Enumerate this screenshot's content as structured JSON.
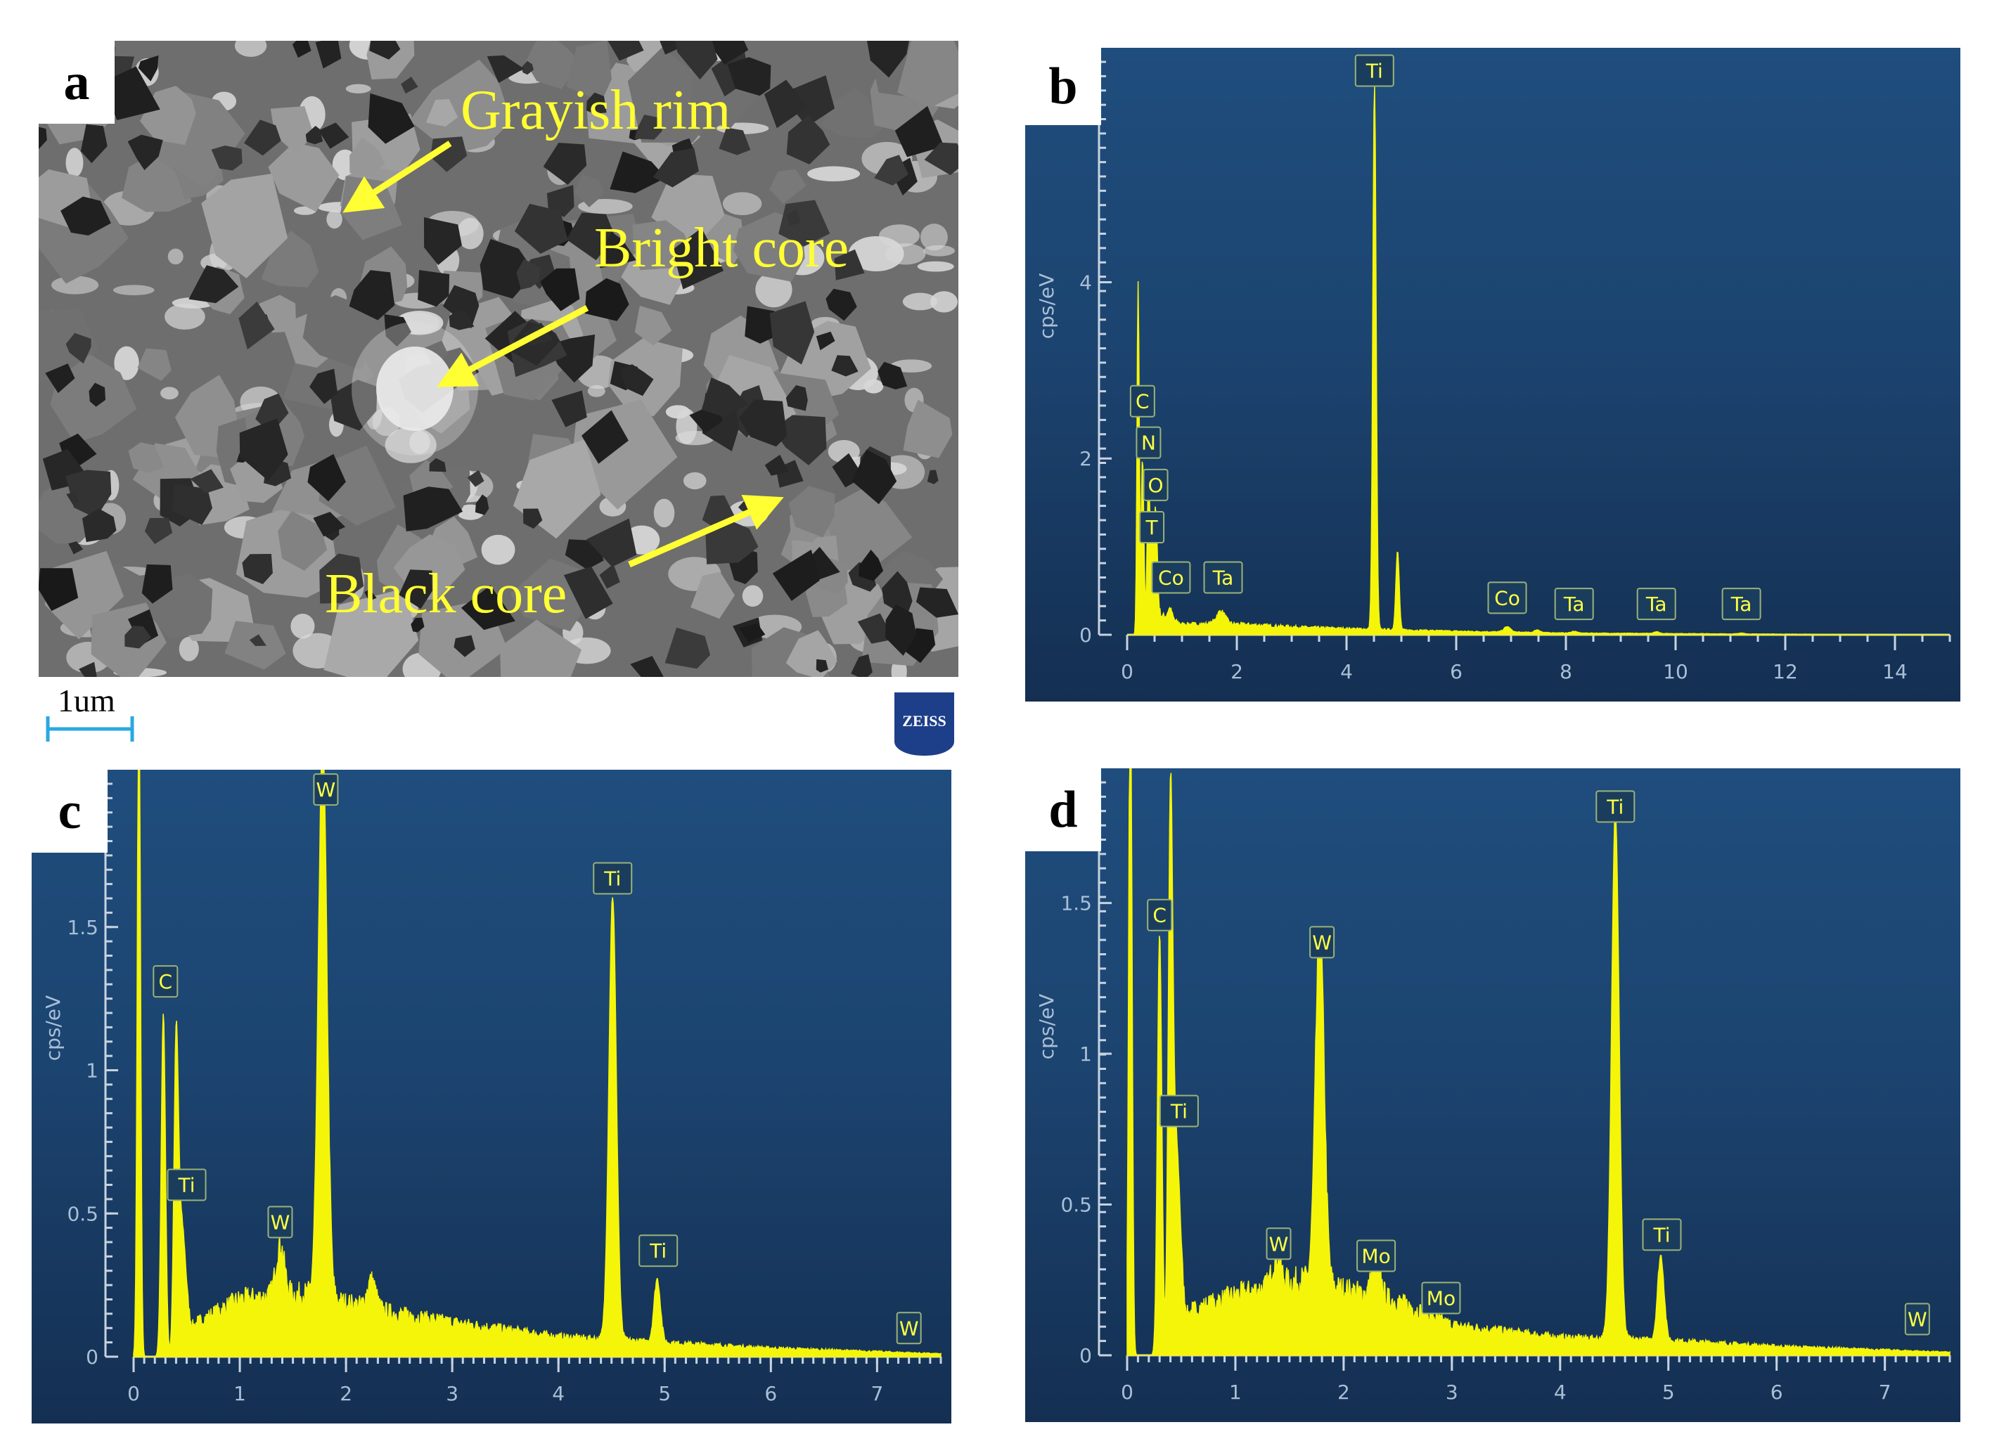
{
  "panel_a": {
    "letter": "a",
    "labels": {
      "rim": "Grayish rim",
      "bright": "Bright core",
      "black": "Black core"
    },
    "scale_bar": "1um",
    "logo_text": "ZEISS"
  },
  "panels": [
    {
      "key": "b",
      "letter": "b",
      "ylabel": "cps/eV",
      "xlim": [
        0,
        15
      ],
      "ylim": [
        0,
        6.5
      ],
      "xticks": [
        0,
        2,
        4,
        6,
        8,
        10,
        12,
        14
      ],
      "yticks": [
        0,
        2,
        4
      ],
      "minor_x": 0.5,
      "peaks": [
        [
          0.2,
          4.0,
          0.02
        ],
        [
          0.28,
          2.0,
          0.025
        ],
        [
          0.39,
          1.7,
          0.025
        ],
        [
          0.45,
          0.85,
          0.02
        ],
        [
          0.52,
          1.2,
          0.03
        ],
        [
          0.78,
          0.12,
          0.04
        ],
        [
          1.71,
          0.15,
          0.08
        ],
        [
          4.51,
          6.2,
          0.03
        ],
        [
          4.93,
          0.9,
          0.03
        ],
        [
          6.93,
          0.06,
          0.06
        ],
        [
          7.48,
          0.03,
          0.05
        ],
        [
          8.15,
          0.02,
          0.05
        ],
        [
          9.65,
          0.02,
          0.05
        ],
        [
          11.2,
          0.01,
          0.05
        ]
      ],
      "background": [
        [
          0.3,
          0.0
        ],
        [
          0.5,
          0.25
        ],
        [
          1.0,
          0.12
        ],
        [
          2.0,
          0.12
        ],
        [
          3.0,
          0.09
        ],
        [
          4.0,
          0.07
        ],
        [
          6.0,
          0.04
        ],
        [
          8.0,
          0.02
        ],
        [
          11.0,
          0.01
        ],
        [
          15.0,
          0.0
        ]
      ],
      "peak_labels": [
        {
          "text": "Ti",
          "x": 4.51,
          "y": 6.4
        },
        {
          "text": "C",
          "x": 0.28,
          "y": 2.65
        },
        {
          "text": "N",
          "x": 0.39,
          "y": 2.18
        },
        {
          "text": "O",
          "x": 0.52,
          "y": 1.7
        },
        {
          "text": "T",
          "x": 0.45,
          "y": 1.22
        },
        {
          "text": "Co",
          "x": 0.8,
          "y": 0.65
        },
        {
          "text": "Ta",
          "x": 1.75,
          "y": 0.65
        },
        {
          "text": "Co",
          "x": 6.93,
          "y": 0.42
        },
        {
          "text": "Ta",
          "x": 8.15,
          "y": 0.35
        },
        {
          "text": "Ta",
          "x": 9.65,
          "y": 0.35
        },
        {
          "text": "Ta",
          "x": 11.2,
          "y": 0.35
        }
      ]
    },
    {
      "key": "c",
      "letter": "c",
      "ylabel": "cps/eV",
      "xlim": [
        0,
        7.6
      ],
      "ylim": [
        0,
        2.0
      ],
      "xticks": [
        0,
        1,
        2,
        3,
        4,
        5,
        6,
        7
      ],
      "yticks": [
        0,
        0.5,
        1,
        1.5
      ],
      "ytick_labels": [
        "0",
        "0.5",
        "1",
        "1.5"
      ],
      "minor_x": 0.1,
      "peaks": [
        [
          0.05,
          2.4,
          0.015
        ],
        [
          0.28,
          1.2,
          0.02
        ],
        [
          0.4,
          0.95,
          0.02
        ],
        [
          0.45,
          0.42,
          0.04
        ],
        [
          1.38,
          0.18,
          0.04
        ],
        [
          1.78,
          1.95,
          0.04
        ],
        [
          2.24,
          0.1,
          0.04
        ],
        [
          4.51,
          1.55,
          0.035
        ],
        [
          4.93,
          0.22,
          0.03
        ]
      ],
      "background": [
        [
          0.35,
          0.0
        ],
        [
          0.6,
          0.12
        ],
        [
          1.0,
          0.2
        ],
        [
          1.6,
          0.22
        ],
        [
          2.5,
          0.15
        ],
        [
          3.0,
          0.12
        ],
        [
          4.0,
          0.07
        ],
        [
          5.0,
          0.05
        ],
        [
          6.0,
          0.03
        ],
        [
          7.6,
          0.01
        ]
      ],
      "peak_labels": [
        {
          "text": "W",
          "x": 1.81,
          "y": 1.98
        },
        {
          "text": "C",
          "x": 0.3,
          "y": 1.31
        },
        {
          "text": "Ti",
          "x": 0.5,
          "y": 0.6
        },
        {
          "text": "W",
          "x": 1.38,
          "y": 0.47
        },
        {
          "text": "Ti",
          "x": 4.51,
          "y": 1.67
        },
        {
          "text": "Ti",
          "x": 4.94,
          "y": 0.37
        },
        {
          "text": "W",
          "x": 7.3,
          "y": 0.1
        }
      ]
    },
    {
      "key": "d",
      "letter": "d",
      "ylabel": "cps/eV",
      "xlim": [
        0,
        7.6
      ],
      "ylim": [
        0,
        1.9
      ],
      "xticks": [
        0,
        1,
        2,
        3,
        4,
        5,
        6,
        7
      ],
      "yticks": [
        0,
        0.5,
        1,
        1.5
      ],
      "ytick_labels": [
        "0",
        "0.5",
        "1",
        "1.5"
      ],
      "minor_x": 0.1,
      "peaks": [
        [
          0.03,
          2.4,
          0.015
        ],
        [
          0.3,
          1.4,
          0.02
        ],
        [
          0.4,
          1.6,
          0.02
        ],
        [
          0.45,
          0.65,
          0.04
        ],
        [
          1.38,
          0.1,
          0.04
        ],
        [
          1.78,
          1.2,
          0.04
        ],
        [
          2.3,
          0.12,
          0.04
        ],
        [
          4.51,
          1.75,
          0.035
        ],
        [
          4.93,
          0.28,
          0.03
        ]
      ],
      "background": [
        [
          0.35,
          0.0
        ],
        [
          0.6,
          0.15
        ],
        [
          1.0,
          0.2
        ],
        [
          1.6,
          0.25
        ],
        [
          2.5,
          0.18
        ],
        [
          3.0,
          0.1
        ],
        [
          4.0,
          0.06
        ],
        [
          5.0,
          0.05
        ],
        [
          6.0,
          0.03
        ],
        [
          7.6,
          0.01
        ]
      ],
      "peak_labels": [
        {
          "text": "Ti",
          "x": 4.51,
          "y": 1.82
        },
        {
          "text": "C",
          "x": 0.3,
          "y": 1.46
        },
        {
          "text": "W",
          "x": 1.8,
          "y": 1.37
        },
        {
          "text": "Ti",
          "x": 0.48,
          "y": 0.81
        },
        {
          "text": "W",
          "x": 1.4,
          "y": 0.37
        },
        {
          "text": "Mo",
          "x": 2.3,
          "y": 0.33
        },
        {
          "text": "Mo",
          "x": 2.9,
          "y": 0.19
        },
        {
          "text": "Ti",
          "x": 4.94,
          "y": 0.4
        },
        {
          "text": "W",
          "x": 7.3,
          "y": 0.12
        }
      ]
    }
  ]
}
